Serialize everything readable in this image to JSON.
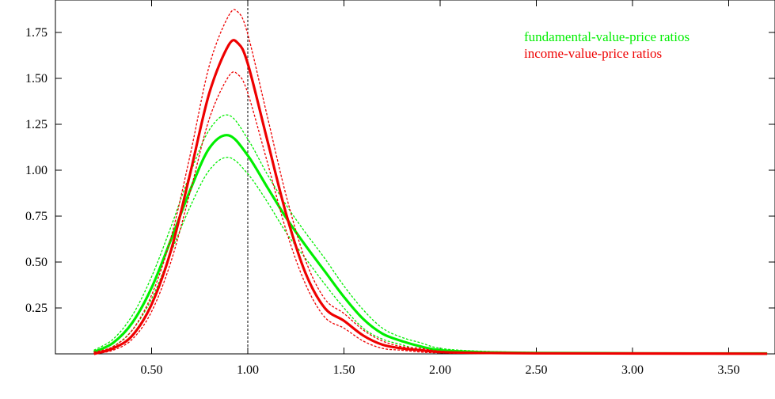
{
  "chart_data": {
    "type": "line",
    "title": "",
    "xlabel": "",
    "ylabel": "",
    "xlim": [
      -0.0,
      3.7
    ],
    "ylim": [
      0,
      1.87
    ],
    "x_ticks": [
      {
        "value": 0.5,
        "label": "0.50"
      },
      {
        "value": 1.0,
        "label": "1.00"
      },
      {
        "value": 1.5,
        "label": "1.50"
      },
      {
        "value": 2.0,
        "label": "2.00"
      },
      {
        "value": 2.5,
        "label": "2.50"
      },
      {
        "value": 3.0,
        "label": "3.00"
      },
      {
        "value": 3.5,
        "label": "3.50"
      }
    ],
    "y_ticks": [
      {
        "value": 0.25,
        "label": "0.25"
      },
      {
        "value": 0.5,
        "label": "0.50"
      },
      {
        "value": 0.75,
        "label": "0.75"
      },
      {
        "value": 1.0,
        "label": "1.00"
      },
      {
        "value": 1.25,
        "label": "1.25"
      },
      {
        "value": 1.5,
        "label": "1.50"
      },
      {
        "value": 1.75,
        "label": "1.75"
      }
    ],
    "reference_line_x": 1.0,
    "grid": false,
    "legend_position": "top-right",
    "series": [
      {
        "name": "fundamental-value-price ratios",
        "color": "#00ee00",
        "x": [
          0.2,
          0.3,
          0.4,
          0.5,
          0.6,
          0.7,
          0.8,
          0.9,
          1.0,
          1.1,
          1.2,
          1.3,
          1.4,
          1.5,
          1.6,
          1.7,
          1.8,
          1.9,
          2.0,
          2.2,
          2.5,
          3.0,
          3.7
        ],
        "y": [
          0.01,
          0.06,
          0.17,
          0.36,
          0.62,
          0.89,
          1.12,
          1.19,
          1.08,
          0.91,
          0.74,
          0.59,
          0.45,
          0.31,
          0.19,
          0.11,
          0.07,
          0.04,
          0.02,
          0.01,
          0.005,
          0.003,
          0.002
        ],
        "lower": [
          0.0,
          0.04,
          0.13,
          0.3,
          0.55,
          0.8,
          1.0,
          1.07,
          0.98,
          0.83,
          0.66,
          0.52,
          0.38,
          0.25,
          0.14,
          0.08,
          0.05,
          0.02,
          0.01,
          0.005,
          0.002,
          0.001,
          0.001
        ],
        "upper": [
          0.02,
          0.08,
          0.21,
          0.42,
          0.69,
          0.98,
          1.22,
          1.3,
          1.17,
          0.98,
          0.81,
          0.66,
          0.52,
          0.37,
          0.24,
          0.14,
          0.09,
          0.06,
          0.03,
          0.015,
          0.008,
          0.005,
          0.003
        ]
      },
      {
        "name": "income-value-price ratios",
        "color": "#ee0000",
        "x": [
          0.2,
          0.3,
          0.4,
          0.5,
          0.6,
          0.7,
          0.8,
          0.9,
          0.95,
          1.0,
          1.1,
          1.2,
          1.3,
          1.4,
          1.5,
          1.6,
          1.7,
          1.8,
          1.9,
          2.0,
          2.2,
          2.5,
          3.0,
          3.7
        ],
        "y": [
          0.0,
          0.03,
          0.1,
          0.27,
          0.56,
          0.98,
          1.42,
          1.68,
          1.69,
          1.58,
          1.17,
          0.76,
          0.44,
          0.25,
          0.18,
          0.1,
          0.05,
          0.03,
          0.02,
          0.01,
          0.005,
          0.003,
          0.002,
          0.001
        ],
        "lower": [
          0.0,
          0.02,
          0.08,
          0.23,
          0.5,
          0.88,
          1.28,
          1.51,
          1.52,
          1.42,
          1.05,
          0.67,
          0.38,
          0.2,
          0.14,
          0.07,
          0.03,
          0.02,
          0.01,
          0.005,
          0.002,
          0.001,
          0.001,
          0.0
        ],
        "upper": [
          0.01,
          0.04,
          0.13,
          0.32,
          0.63,
          1.08,
          1.57,
          1.84,
          1.86,
          1.74,
          1.3,
          0.86,
          0.51,
          0.3,
          0.22,
          0.13,
          0.07,
          0.04,
          0.03,
          0.015,
          0.008,
          0.005,
          0.003,
          0.002
        ]
      }
    ]
  }
}
